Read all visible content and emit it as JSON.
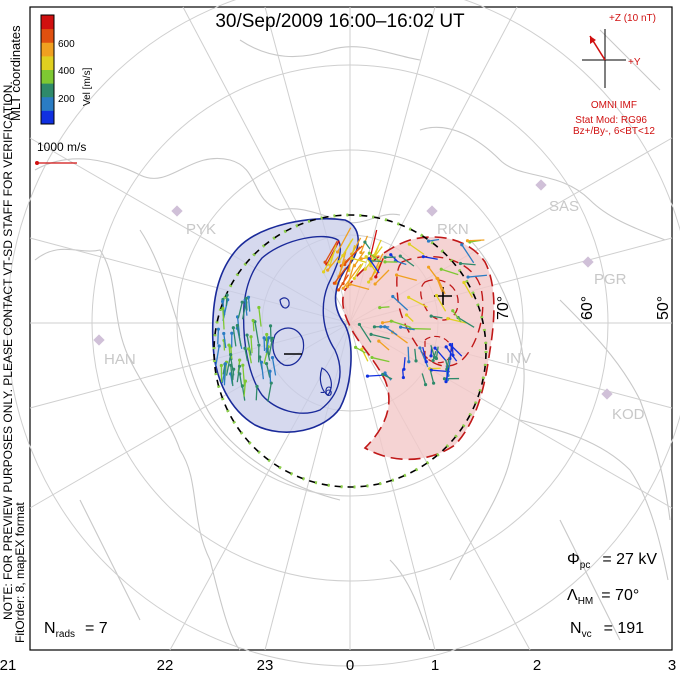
{
  "title": "30/Sep/2009 16:00–16:02 UT",
  "colorbar": {
    "label": "Vel [m/s]",
    "ticks": [
      "600",
      "400",
      "200"
    ],
    "colors": [
      "#1030e0",
      "#2a7cc4",
      "#2e8a6a",
      "#7ec832",
      "#e0d020",
      "#f0a020",
      "#e05010",
      "#d01010"
    ]
  },
  "coordinate_label": "MLT coordinates",
  "scale_label": "1000 m/s",
  "notice": "NOTE: FOR PREVIEW PURPOSES ONLY. PLEASE CONTACT VT-SD STAFF FOR VERIFICATION.",
  "fit_info": "FitOrder: 8, mapEX format",
  "imf": {
    "z_label": "+Z (10 nT)",
    "y_label": "+Y",
    "source": "OMNI IMF",
    "model": "Stat Mod: RG96",
    "condition": "Bz+/By-, 6<BT<12"
  },
  "radars": [
    "PYK",
    "RKN",
    "SAS",
    "PGR",
    "HAN",
    "INV",
    "KOD"
  ],
  "latitude_labels": [
    "70°",
    "60°",
    "50°"
  ],
  "contour_label": "-6",
  "stats": {
    "phi_pc": "Φ",
    "phi_sub": "pc",
    "phi_value": "= 27 kV",
    "lambda": "Λ",
    "lambda_sub": "HM",
    "lambda_value": "= 70°",
    "nvc": "N",
    "nvc_sub": "vc",
    "nvc_value": "= 191",
    "nrads": "N",
    "nrads_sub": "rads",
    "nrads_value": "= 7"
  },
  "mlt_ticks": [
    "21",
    "22",
    "23",
    "0",
    "1",
    "2",
    "3"
  ]
}
